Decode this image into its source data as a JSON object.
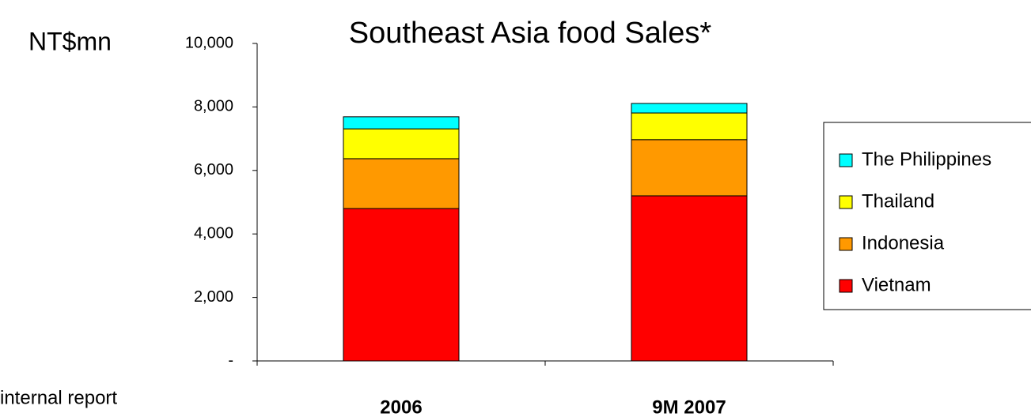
{
  "chart_data": {
    "type": "stacked_bar",
    "title": "Southeast Asia food Sales*",
    "y_label": "NT$mn",
    "footnote": "internal report",
    "categories": [
      "2006",
      "9M 2007"
    ],
    "series": [
      {
        "name": "Vietnam",
        "color": "#ff0000",
        "values": [
          4800,
          5200
        ]
      },
      {
        "name": "Indonesia",
        "color": "#ff9900",
        "values": [
          1570,
          1770
        ]
      },
      {
        "name": "Thailand",
        "color": "#ffff00",
        "values": [
          940,
          840
        ]
      },
      {
        "name": "The Philippines",
        "color": "#00ffff",
        "values": [
          380,
          300
        ]
      }
    ],
    "ylim": [
      0,
      10000
    ],
    "yticks": [
      {
        "value": 0,
        "label": "-"
      },
      {
        "value": 2000,
        "label": "2,000"
      },
      {
        "value": 4000,
        "label": "4,000"
      },
      {
        "value": 6000,
        "label": "6,000"
      },
      {
        "value": 8000,
        "label": "8,000"
      },
      {
        "value": 10000,
        "label": "10,000"
      }
    ],
    "grid": false,
    "legend": "right"
  }
}
